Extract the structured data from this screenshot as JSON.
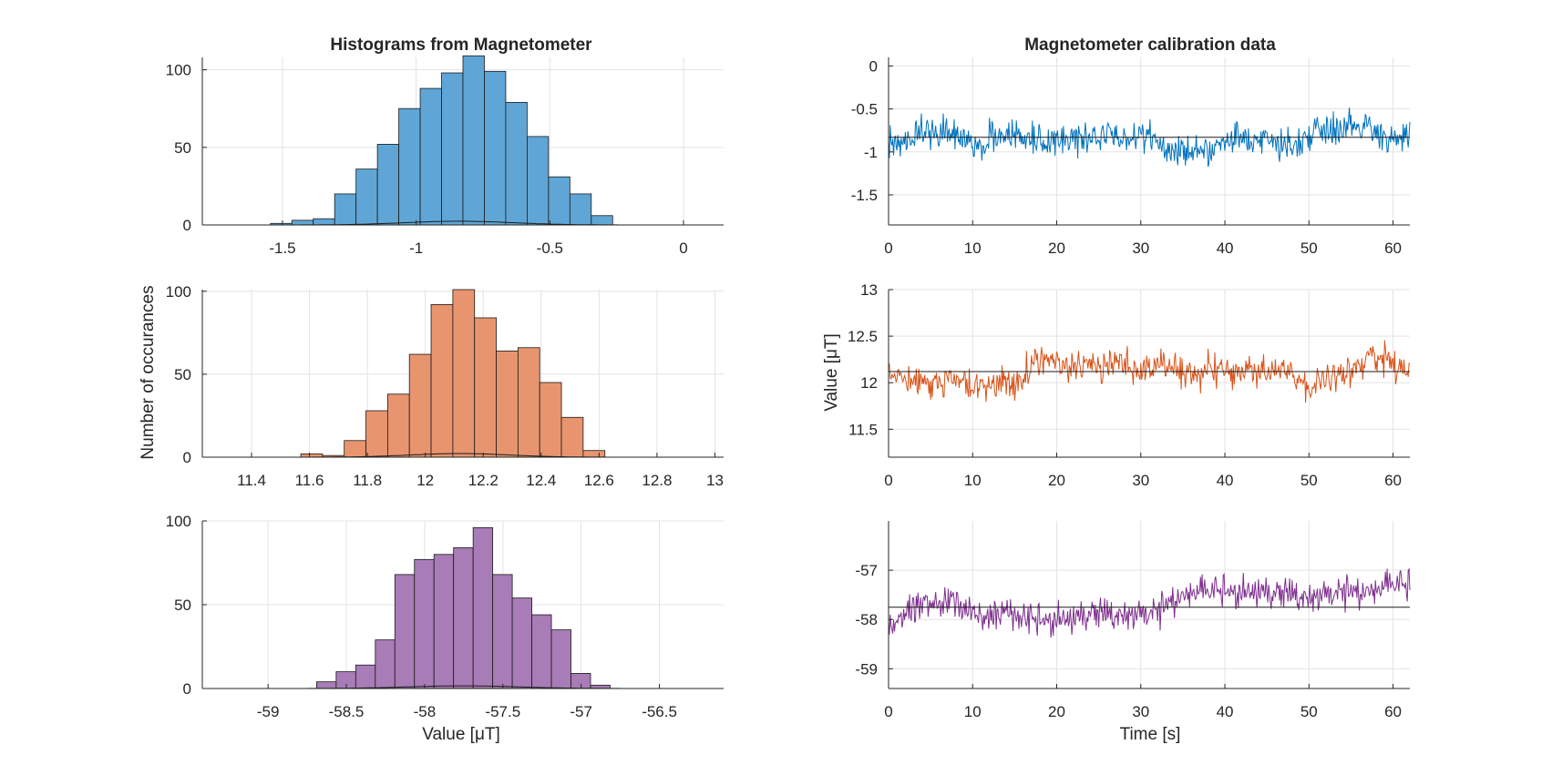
{
  "figure": {
    "hist_title": "Histograms from Magnetometer",
    "ts_title": "Magnetometer calibration data",
    "hist_ylabel": "Number of occurances",
    "hist_xlabel": "Value [μT]",
    "ts_ylabel": "Value [μT]",
    "ts_xlabel": "Time [s]"
  },
  "chart_data": [
    {
      "type": "bar",
      "name": "histogram-x",
      "color": "#5fa6d6",
      "xlim": [
        -1.8,
        0.15
      ],
      "ylim": [
        0,
        108
      ],
      "xticks": [
        -1.5,
        -1,
        -0.5,
        0
      ],
      "xtick_labels": [
        "-1.5",
        "-1",
        "-0.5",
        "0"
      ],
      "yticks": [
        0,
        50,
        100
      ],
      "ytick_labels": [
        "0",
        "50",
        "100"
      ],
      "bin_edges": [
        -1.545,
        -1.465,
        -1.385,
        -1.305,
        -1.225,
        -1.145,
        -1.065,
        -0.985,
        -0.905,
        -0.825,
        -0.745,
        -0.665,
        -0.585,
        -0.505,
        -0.425,
        -0.345,
        -0.265
      ],
      "counts": [
        1,
        3,
        4,
        20,
        36,
        52,
        75,
        88,
        98,
        109,
        99,
        79,
        57,
        31,
        20,
        6,
        3
      ],
      "fit_curve": {
        "mean": -0.84,
        "std": 0.2,
        "peak": 2.4
      },
      "grid": true
    },
    {
      "type": "bar",
      "name": "histogram-y",
      "color": "#e8956f",
      "xlim": [
        11.23,
        13.03
      ],
      "ylim": [
        0,
        101
      ],
      "xticks": [
        11.4,
        11.6,
        11.8,
        12,
        12.2,
        12.4,
        12.6,
        12.8,
        13
      ],
      "xtick_labels": [
        "11.4",
        "11.6",
        "11.8",
        "12",
        "12.2",
        "12.4",
        "12.6",
        "12.8",
        "13"
      ],
      "yticks": [
        0,
        50,
        100
      ],
      "ytick_labels": [
        "0",
        "50",
        "100"
      ],
      "bin_edges": [
        11.57,
        11.645,
        11.72,
        11.795,
        11.87,
        11.945,
        12.02,
        12.095,
        12.17,
        12.245,
        12.32,
        12.395,
        12.47,
        12.545,
        12.62
      ],
      "counts": [
        2,
        1,
        10,
        28,
        38,
        62,
        92,
        101,
        84,
        64,
        66,
        45,
        24,
        4,
        2
      ],
      "fit_curve": {
        "mean": 12.12,
        "std": 0.17,
        "peak": 2.2
      },
      "grid": true
    },
    {
      "type": "bar",
      "name": "histogram-z",
      "color": "#a87cb6",
      "xlim": [
        -59.42,
        -56.09
      ],
      "ylim": [
        0,
        100
      ],
      "xticks": [
        -59,
        -58.5,
        -58,
        -57.5,
        -57,
        -56.5
      ],
      "xtick_labels": [
        "-59",
        "-58.5",
        "-58",
        "-57.5",
        "-57",
        "-56.5"
      ],
      "yticks": [
        0,
        50,
        100
      ],
      "ytick_labels": [
        "0",
        "50",
        "100"
      ],
      "bin_edges": [
        -58.69,
        -58.565,
        -58.44,
        -58.315,
        -58.19,
        -58.065,
        -57.94,
        -57.815,
        -57.69,
        -57.565,
        -57.44,
        -57.315,
        -57.19,
        -57.065,
        -56.94,
        -56.815
      ],
      "counts": [
        4,
        10,
        14,
        29,
        68,
        77,
        80,
        84,
        96,
        68,
        54,
        44,
        35,
        9,
        2,
        2
      ],
      "fit_curve": {
        "mean": -57.75,
        "std": 0.35,
        "peak": 1.6
      },
      "grid": true
    },
    {
      "type": "line",
      "name": "timeseries-x",
      "color": "#0072bd",
      "xlim": [
        0,
        62
      ],
      "ylim": [
        -1.85,
        0.1
      ],
      "xticks": [
        0,
        10,
        20,
        30,
        40,
        50,
        60
      ],
      "xtick_labels": [
        "0",
        "10",
        "20",
        "30",
        "40",
        "50",
        "60"
      ],
      "yticks": [
        -1.5,
        -1,
        -0.5,
        0
      ],
      "ytick_labels": [
        "-1.5",
        "-1",
        "-0.5",
        "0"
      ],
      "mean_line": -0.83,
      "grid": true,
      "series": [
        {
          "x": [
            0,
            2,
            4,
            6,
            8,
            10,
            12,
            14,
            16,
            18,
            20,
            22,
            24,
            26,
            28,
            30,
            32,
            34,
            36,
            38,
            40,
            42,
            44,
            46,
            48,
            50,
            52,
            54,
            56,
            58,
            60,
            62
          ],
          "y": [
            -0.85,
            -0.95,
            -0.72,
            -0.78,
            -0.82,
            -0.9,
            -0.85,
            -0.83,
            -0.8,
            -0.88,
            -0.82,
            -0.85,
            -0.92,
            -0.78,
            -0.86,
            -0.82,
            -0.88,
            -0.95,
            -0.98,
            -1.0,
            -0.9,
            -0.85,
            -0.82,
            -0.9,
            -0.95,
            -0.78,
            -0.72,
            -0.7,
            -0.68,
            -0.75,
            -0.85,
            -0.82
          ],
          "noise": 0.13
        }
      ]
    },
    {
      "type": "line",
      "name": "timeseries-y",
      "color": "#d95319",
      "xlim": [
        0,
        62
      ],
      "ylim": [
        11.2,
        13.0
      ],
      "xticks": [
        0,
        10,
        20,
        30,
        40,
        50,
        60
      ],
      "xtick_labels": [
        "0",
        "10",
        "20",
        "30",
        "40",
        "50",
        "60"
      ],
      "yticks": [
        11.5,
        12,
        12.5,
        13
      ],
      "ytick_labels": [
        "11.5",
        "12",
        "12.5",
        "13"
      ],
      "mean_line": 12.12,
      "grid": true,
      "series": [
        {
          "x": [
            0,
            2,
            4,
            6,
            8,
            10,
            12,
            14,
            16,
            18,
            20,
            22,
            24,
            26,
            28,
            30,
            32,
            34,
            36,
            38,
            40,
            42,
            44,
            46,
            48,
            50,
            52,
            54,
            56,
            58,
            60,
            62
          ],
          "y": [
            12.1,
            12.05,
            12.0,
            12.0,
            12.05,
            11.95,
            11.95,
            12.0,
            12.05,
            12.25,
            12.2,
            12.15,
            12.2,
            12.25,
            12.2,
            12.15,
            12.2,
            12.15,
            12.1,
            12.15,
            12.1,
            12.15,
            12.1,
            12.15,
            12.05,
            11.95,
            12.05,
            12.1,
            12.2,
            12.3,
            12.2,
            12.15
          ],
          "noise": 0.12
        }
      ]
    },
    {
      "type": "line",
      "name": "timeseries-z",
      "color": "#7e2f8e",
      "xlim": [
        0,
        62
      ],
      "ylim": [
        -59.4,
        -56.0
      ],
      "xticks": [
        0,
        10,
        20,
        30,
        40,
        50,
        60
      ],
      "xtick_labels": [
        "0",
        "10",
        "20",
        "30",
        "40",
        "50",
        "60"
      ],
      "yticks": [
        -59,
        -58,
        -57
      ],
      "ytick_labels": [
        "-59",
        "-58",
        "-57"
      ],
      "mean_line": -57.75,
      "grid": true,
      "series": [
        {
          "x": [
            0,
            2,
            4,
            6,
            8,
            10,
            12,
            14,
            16,
            18,
            20,
            22,
            24,
            26,
            28,
            30,
            32,
            34,
            36,
            38,
            40,
            42,
            44,
            46,
            48,
            50,
            52,
            54,
            56,
            58,
            60,
            62
          ],
          "y": [
            -58.1,
            -57.9,
            -57.75,
            -57.65,
            -57.7,
            -57.9,
            -58.0,
            -57.85,
            -57.95,
            -58.1,
            -58.0,
            -58.05,
            -57.95,
            -57.9,
            -57.95,
            -57.95,
            -57.9,
            -57.6,
            -57.5,
            -57.45,
            -57.5,
            -57.45,
            -57.5,
            -57.55,
            -57.5,
            -57.6,
            -57.55,
            -57.5,
            -57.45,
            -57.45,
            -57.3,
            -57.4
          ],
          "noise": 0.22
        }
      ]
    }
  ]
}
